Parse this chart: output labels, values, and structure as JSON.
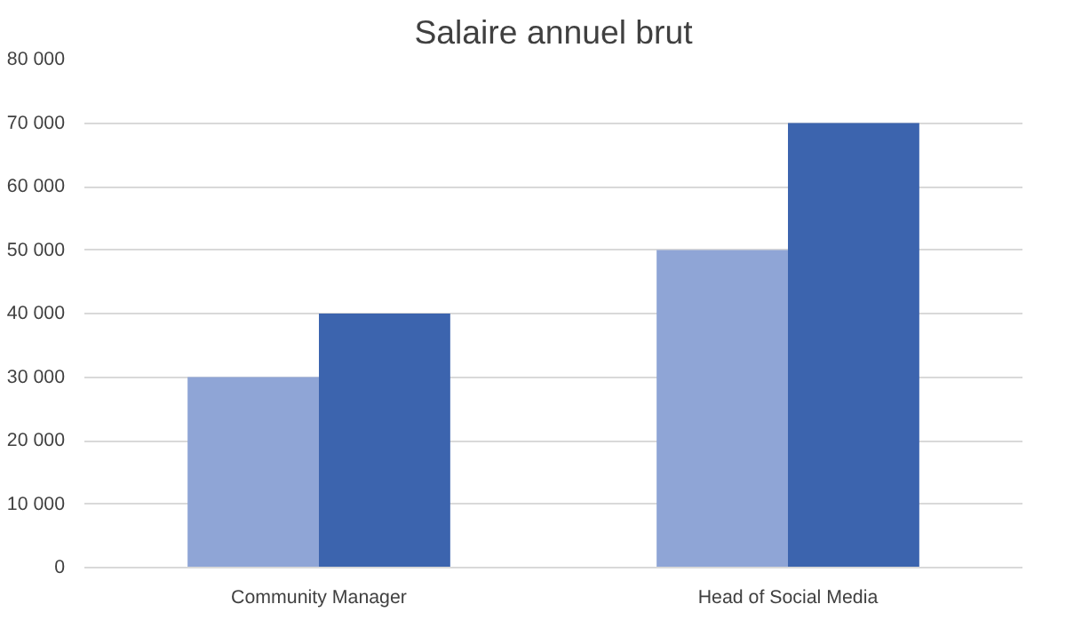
{
  "chart_data": {
    "type": "bar",
    "title": "Salaire annuel brut",
    "categories": [
      "Community Manager",
      "Head of Social Media"
    ],
    "series": [
      {
        "color": "#8fa5d6",
        "values": [
          30000,
          50000
        ]
      },
      {
        "color": "#3c64ae",
        "values": [
          40000,
          70000
        ]
      }
    ],
    "ylim": [
      0,
      80000
    ],
    "yticks": [
      {
        "value": 0,
        "label": "0"
      },
      {
        "value": 10000,
        "label": "10 000"
      },
      {
        "value": 20000,
        "label": "20 000"
      },
      {
        "value": 30000,
        "label": "30 000"
      },
      {
        "value": 40000,
        "label": "40 000"
      },
      {
        "value": 50000,
        "label": "50 000"
      },
      {
        "value": 60000,
        "label": "60 000"
      },
      {
        "value": 70000,
        "label": "70 000"
      },
      {
        "value": 80000,
        "label": "80 000"
      }
    ],
    "grid": "y"
  }
}
